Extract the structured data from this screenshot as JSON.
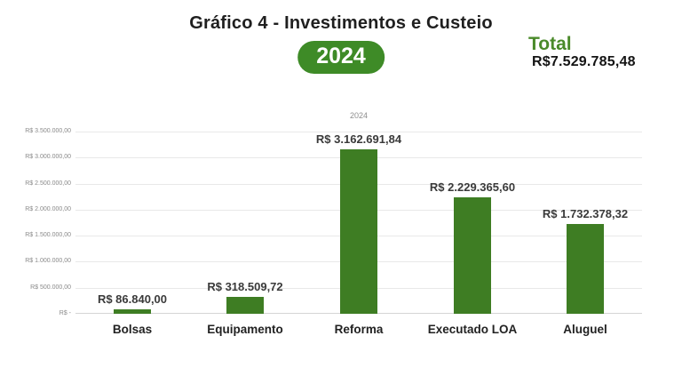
{
  "header": {
    "title": "Gráfico 4 - Investimentos e Custeio",
    "year_badge": "2024",
    "total_label": "Total",
    "total_value": "R$7.529.785,48"
  },
  "colors": {
    "bar": "#3e7d23",
    "badge": "#3e8b27",
    "total_label": "#4a8a2a",
    "gridline": "#e8e8e8",
    "background": "#ffffff"
  },
  "chart_data": {
    "type": "bar",
    "title": "Gráfico 4 - Investimentos e Custeio",
    "legend": [
      "2024"
    ],
    "legend_position": "top-center",
    "grid": true,
    "categories": [
      "Bolsas",
      "Equipamento",
      "Reforma",
      "Executado LOA",
      "Aluguel"
    ],
    "values": [
      86840.0,
      318509.72,
      3162691.84,
      2229365.6,
      1732378.32
    ],
    "value_labels": [
      "R$ 86.840,00",
      "R$ 318.509,72",
      "R$ 3.162.691,84",
      "R$ 2.229.365,60",
      "R$ 1.732.378,32"
    ],
    "total": 7529785.48,
    "ylim": [
      0,
      3500000
    ],
    "ytick_interval": 500000,
    "yticks": [
      {
        "value": 3500000,
        "label": "R$ 3.500.000,00"
      },
      {
        "value": 3000000,
        "label": "R$ 3.000.000,00"
      },
      {
        "value": 2500000,
        "label": "R$ 2.500.000,00"
      },
      {
        "value": 2000000,
        "label": "R$ 2.000.000,00"
      },
      {
        "value": 1500000,
        "label": "R$ 1.500.000,00"
      },
      {
        "value": 1000000,
        "label": "R$ 1.000.000,00"
      },
      {
        "value": 500000,
        "label": "R$ 500.000,00"
      },
      {
        "value": 0,
        "label": "R$ -"
      }
    ]
  }
}
